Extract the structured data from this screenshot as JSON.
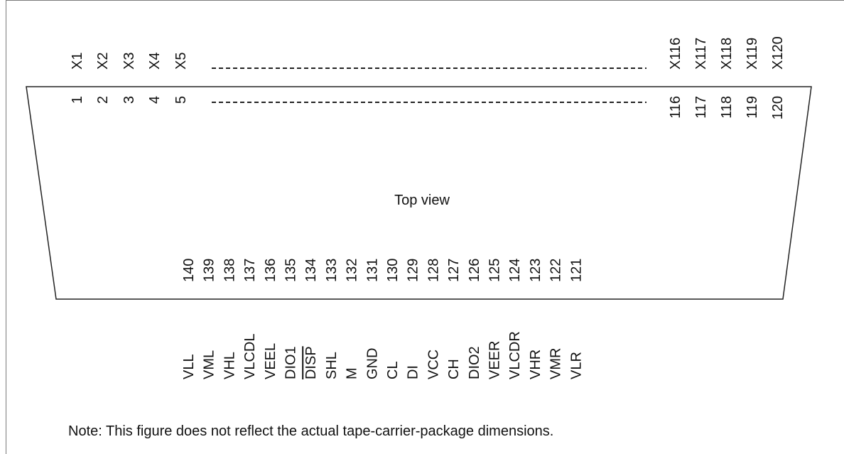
{
  "diagram": {
    "top_labels_left": [
      "X1",
      "X2",
      "X3",
      "X4",
      "X5"
    ],
    "top_labels_right": [
      "X116",
      "X117",
      "X118",
      "X119",
      "X120"
    ],
    "pin_numbers_left": [
      "1",
      "2",
      "3",
      "4",
      "5"
    ],
    "pin_numbers_right": [
      "116",
      "117",
      "118",
      "119",
      "120"
    ],
    "center_label": "Top view",
    "bottom_pin_numbers": [
      "140",
      "139",
      "138",
      "137",
      "136",
      "135",
      "134",
      "133",
      "132",
      "131",
      "130",
      "129",
      "128",
      "127",
      "126",
      "125",
      "124",
      "123",
      "122",
      "121"
    ],
    "bottom_signal_names": [
      "VLL",
      "VML",
      "VHL",
      "VLCDL",
      "VEEL",
      "DIO1",
      "DISP",
      "SHL",
      "M",
      "GND",
      "CL",
      "DI",
      "VCC",
      "CH",
      "DIO2",
      "VEER",
      "VLCDR",
      "VHR",
      "VMR",
      "VLR"
    ],
    "overlined_signals": [
      "DISP"
    ],
    "note": "Note:  This figure does not reflect the actual tape-carrier-package dimensions."
  }
}
